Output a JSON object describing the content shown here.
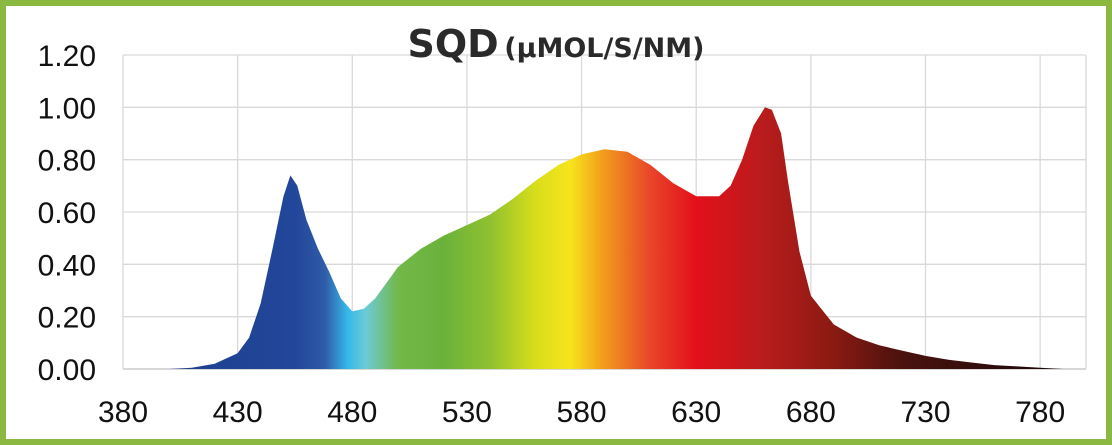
{
  "chart_data": {
    "type": "area",
    "title": "SQD",
    "title_unit": "(µMOL/S/NM)",
    "xlabel": "",
    "ylabel": "",
    "xlim": [
      380,
      800
    ],
    "ylim": [
      0,
      1.2
    ],
    "x_ticks": [
      "380",
      "430",
      "480",
      "530",
      "580",
      "630",
      "680",
      "730",
      "780"
    ],
    "y_ticks": [
      "0.00",
      "0.20",
      "0.40",
      "0.60",
      "0.80",
      "1.00",
      "1.20"
    ],
    "grid": true,
    "fill": "visible-spectrum gradient by wavelength",
    "x": [
      400,
      410,
      420,
      430,
      435,
      440,
      445,
      450,
      453,
      456,
      460,
      465,
      470,
      475,
      480,
      485,
      490,
      495,
      500,
      510,
      520,
      530,
      540,
      550,
      560,
      570,
      580,
      590,
      600,
      610,
      620,
      630,
      640,
      645,
      650,
      655,
      660,
      663,
      667,
      670,
      675,
      680,
      690,
      700,
      710,
      720,
      730,
      740,
      750,
      760,
      770,
      780,
      790
    ],
    "y": [
      0,
      0.005,
      0.02,
      0.06,
      0.12,
      0.25,
      0.45,
      0.66,
      0.74,
      0.7,
      0.57,
      0.46,
      0.37,
      0.27,
      0.22,
      0.23,
      0.27,
      0.33,
      0.39,
      0.46,
      0.51,
      0.55,
      0.59,
      0.65,
      0.72,
      0.78,
      0.82,
      0.84,
      0.83,
      0.78,
      0.71,
      0.66,
      0.66,
      0.7,
      0.8,
      0.93,
      1.0,
      0.99,
      0.9,
      0.72,
      0.45,
      0.28,
      0.17,
      0.12,
      0.09,
      0.07,
      0.05,
      0.035,
      0.025,
      0.015,
      0.01,
      0.005,
      0
    ]
  },
  "colors": {
    "border": "#8ab840",
    "grid": "#d9d9d9"
  }
}
